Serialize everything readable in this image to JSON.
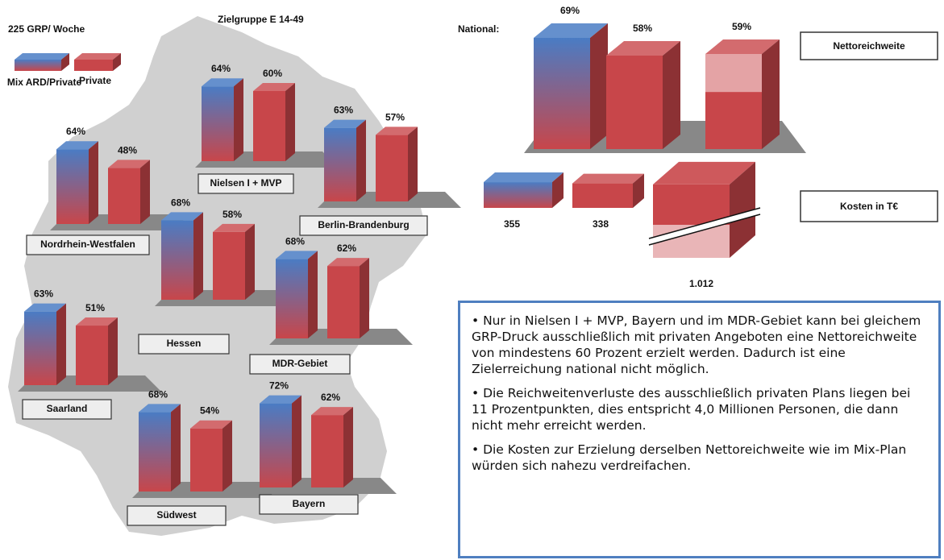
{
  "chart_data": [
    {
      "type": "bar3d-regions",
      "title": "Zielgruppe E 14-49",
      "subtitle": "225 GRP/ Woche",
      "categories": [
        "Nielsen I + MVP",
        "Berlin-Brandenburg",
        "Nordrhein-Westfalen",
        "Hessen",
        "MDR-Gebiet",
        "Saarland",
        "Südwest",
        "Bayern"
      ],
      "series": [
        {
          "name": "Mix ARD/Private",
          "color": "#4a7cc4",
          "values": [
            64,
            63,
            64,
            68,
            68,
            63,
            68,
            72
          ],
          "value_labels": [
            "64%",
            "63%",
            "64%",
            "68%",
            "68%",
            "63%",
            "68%",
            "72%"
          ]
        },
        {
          "name": "Private",
          "color": "#c8464a",
          "values": [
            60,
            57,
            48,
            58,
            62,
            51,
            54,
            62
          ],
          "value_labels": [
            "60%",
            "57%",
            "48%",
            "58%",
            "62%",
            "51%",
            "54%",
            "62%"
          ]
        }
      ]
    },
    {
      "type": "bar3d-national",
      "title": "National:",
      "label": "Nettoreichweite",
      "values": [
        69,
        58,
        59
      ],
      "value_labels": [
        "69%",
        "58%",
        "59%"
      ],
      "colors": [
        "#4a7cc4",
        "#c8464a",
        "#c8464a"
      ]
    },
    {
      "type": "bar3d-costs",
      "label": "Kosten in T€",
      "values": [
        355,
        338,
        1012
      ],
      "value_labels": [
        "355",
        "338",
        "1.012"
      ],
      "colors": [
        "#4a7cc4",
        "#c8464a",
        "#c8464a"
      ]
    }
  ],
  "notes": [
    "• Nur in Nielsen I + MVP, Bayern und im MDR-Gebiet kann bei gleichem GRP-Druck ausschließlich mit privaten Angeboten eine Nettoreichweite von mindestens 60 Prozent erzielt werden. Dadurch ist eine Zielerreichung national nicht möglich.",
    "• Die Reichweitenverluste des ausschließlich privaten Plans liegen bei 11 Prozentpunkten, dies entspricht 4,0 Millionen Personen, die dann nicht mehr erreicht werden.",
    "• Die Kosten zur Erzielung derselben Nettoreichweite wie im Mix-Plan würden sich nahezu verdreifachen."
  ]
}
